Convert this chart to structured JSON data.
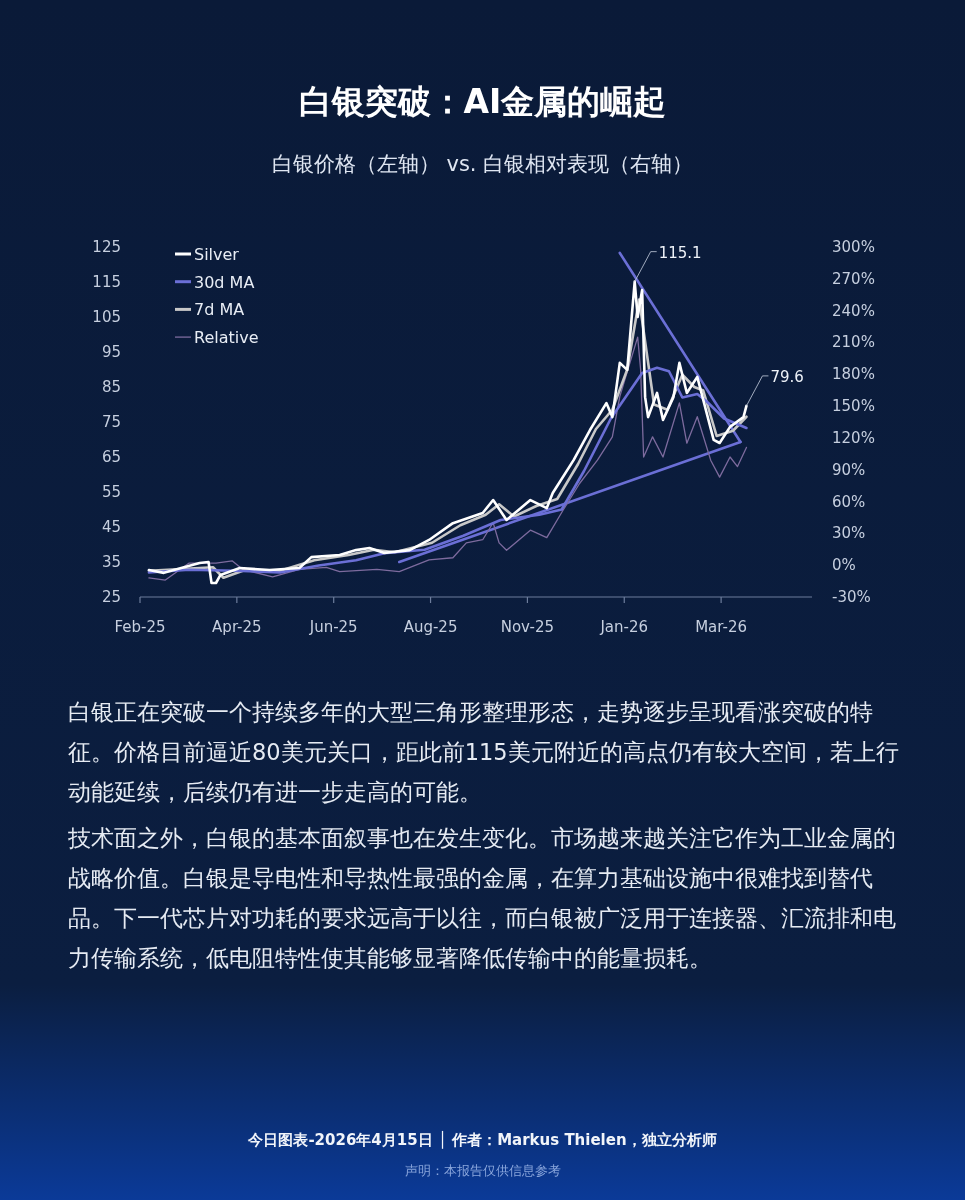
{
  "chart_data": {
    "type": "line",
    "title": "白银突破：AI金属的崛起",
    "subtitle": "白银价格（左轴） vs. 白银相对表现（右轴）",
    "xlim": [
      "2025-02-15",
      "2026-05-12"
    ],
    "xticks": [
      {
        "value": "2025-02-15",
        "label": "Feb-25"
      },
      {
        "value": "2025-04-21",
        "label": "Apr-25"
      },
      {
        "value": "2025-06-25",
        "label": "Jun-25"
      },
      {
        "value": "2025-08-29",
        "label": "Aug-25"
      },
      {
        "value": "2025-11-02",
        "label": "Nov-25"
      },
      {
        "value": "2026-01-06",
        "label": "Jan-26"
      },
      {
        "value": "2026-03-12",
        "label": "Mar-26"
      }
    ],
    "ylim": [
      25,
      125
    ],
    "yticks": [
      25,
      35,
      45,
      55,
      65,
      75,
      85,
      95,
      105,
      115,
      125
    ],
    "y2lim": [
      -30,
      300
    ],
    "y2ticks": [
      {
        "value": -30,
        "label": "-30%"
      },
      {
        "value": 0,
        "label": "0%"
      },
      {
        "value": 30,
        "label": "30%"
      },
      {
        "value": 60,
        "label": "60%"
      },
      {
        "value": 90,
        "label": "90%"
      },
      {
        "value": 120,
        "label": "120%"
      },
      {
        "value": 150,
        "label": "150%"
      },
      {
        "value": 180,
        "label": "180%"
      },
      {
        "value": 210,
        "label": "210%"
      },
      {
        "value": 240,
        "label": "240%"
      },
      {
        "value": 270,
        "label": "270%"
      },
      {
        "value": 300,
        "label": "300%"
      }
    ],
    "grid": false,
    "legend": "top left",
    "line_style": "solid",
    "series": [
      {
        "name": "Silver",
        "color": "#ffffff",
        "x": [
          "2025-02-21",
          "2025-03-03",
          "2025-03-27",
          "2025-04-02",
          "2025-04-04",
          "2025-04-07",
          "2025-04-10",
          "2025-04-23",
          "2025-05-13",
          "2025-06-02",
          "2025-06-10",
          "2025-06-29",
          "2025-07-10",
          "2025-07-19",
          "2025-07-29",
          "2025-08-15",
          "2025-08-28",
          "2025-09-13",
          "2025-10-03",
          "2025-10-10",
          "2025-10-19",
          "2025-11-04",
          "2025-11-15",
          "2025-11-19",
          "2025-12-03",
          "2025-12-14",
          "2025-12-25",
          "2025-12-29",
          "2026-01-03",
          "2026-01-08",
          "2026-01-13",
          "2026-01-15",
          "2026-01-18",
          "2026-01-20",
          "2026-01-22",
          "2026-01-28",
          "2026-02-01",
          "2026-02-08",
          "2026-02-12",
          "2026-02-17",
          "2026-02-24",
          "2026-03-07",
          "2026-03-11",
          "2026-03-18",
          "2026-03-27",
          "2026-03-29"
        ],
        "values": [
          32.7,
          31.9,
          34.7,
          35.0,
          29.0,
          29.0,
          31.3,
          33.3,
          32.7,
          33.3,
          36.4,
          37.0,
          38.4,
          39.0,
          37.6,
          38.4,
          41.3,
          46.1,
          49.0,
          52.7,
          47.0,
          52.7,
          50.4,
          54.7,
          64.1,
          72.7,
          80.4,
          76.4,
          91.9,
          89.9,
          115.1,
          105.0,
          112.7,
          82.1,
          76.4,
          83.3,
          75.6,
          82.1,
          91.9,
          83.3,
          87.9,
          69.9,
          69.0,
          73.6,
          76.4,
          79.6
        ]
      },
      {
        "name": "30d MA",
        "color": "#6b6fd6",
        "x": [
          "2025-02-21",
          "2025-03-20",
          "2025-04-20",
          "2025-05-20",
          "2025-06-15",
          "2025-07-10",
          "2025-07-29",
          "2025-08-25",
          "2025-09-20",
          "2025-10-15",
          "2025-11-10",
          "2025-11-25",
          "2025-12-10",
          "2025-12-28",
          "2026-01-18",
          "2026-01-28",
          "2026-02-05",
          "2026-02-14",
          "2026-02-24",
          "2026-03-02",
          "2026-03-14",
          "2026-03-29"
        ],
        "values": [
          32.0,
          32.8,
          32.5,
          32.0,
          34.0,
          35.5,
          37.5,
          38.5,
          42.5,
          47.0,
          48.5,
          50.0,
          61.0,
          76.0,
          89.0,
          90.5,
          89.5,
          82.0,
          83.0,
          81.0,
          76.0,
          73.3
        ]
      },
      {
        "name": "7d MA",
        "color": "#c8c8c8",
        "x": [
          "2025-02-21",
          "2025-03-15",
          "2025-04-05",
          "2025-04-12",
          "2025-04-25",
          "2025-05-20",
          "2025-06-12",
          "2025-07-05",
          "2025-07-22",
          "2025-08-05",
          "2025-08-30",
          "2025-09-18",
          "2025-10-05",
          "2025-10-14",
          "2025-10-24",
          "2025-11-08",
          "2025-11-22",
          "2025-12-06",
          "2025-12-18",
          "2025-12-29",
          "2026-01-08",
          "2026-01-16",
          "2026-01-21",
          "2026-01-26",
          "2026-02-04",
          "2026-02-14",
          "2026-02-22",
          "2026-02-28",
          "2026-03-09",
          "2026-03-20",
          "2026-03-29"
        ],
        "values": [
          32.5,
          33.0,
          33.5,
          30.5,
          32.5,
          32.5,
          35.5,
          37.0,
          38.5,
          37.8,
          40.5,
          45.5,
          48.5,
          51.5,
          48.0,
          51.0,
          53.0,
          63.0,
          73.0,
          78.5,
          90.0,
          110.0,
          95.0,
          80.0,
          78.5,
          88.5,
          85.0,
          84.0,
          71.0,
          72.5,
          76.5
        ]
      },
      {
        "name": "Relative",
        "color": "#7d6b9e",
        "axis": "y2",
        "x": [
          "2025-02-21",
          "2025-03-04",
          "2025-03-20",
          "2025-04-07",
          "2025-04-18",
          "2025-04-25",
          "2025-05-15",
          "2025-06-02",
          "2025-06-20",
          "2025-06-29",
          "2025-07-24",
          "2025-08-08",
          "2025-08-28",
          "2025-09-13",
          "2025-09-22",
          "2025-10-03",
          "2025-10-10",
          "2025-10-14",
          "2025-10-19",
          "2025-11-04",
          "2025-11-15",
          "2025-11-26",
          "2025-12-07",
          "2025-12-19",
          "2025-12-29",
          "2026-01-03",
          "2026-01-15",
          "2026-01-17",
          "2026-01-19",
          "2026-01-25",
          "2026-02-01",
          "2026-02-12",
          "2026-02-17",
          "2026-02-24",
          "2026-03-05",
          "2026-03-11",
          "2026-03-18",
          "2026-03-23",
          "2026-03-29"
        ],
        "values": [
          -12,
          -14,
          2,
          2,
          4,
          -4,
          -11,
          -4,
          -2,
          -6,
          -4,
          -6,
          5,
          7,
          21,
          24,
          40,
          21,
          14,
          33,
          26,
          52,
          77,
          99,
          121,
          159,
          215,
          184,
          102,
          121,
          102,
          153,
          115,
          140,
          99,
          83,
          102,
          93,
          111
        ]
      },
      {
        "color": "#6b6fd6",
        "x": [
          "2026-01-03",
          "2026-03-25"
        ],
        "values": [
          123.3,
          69.3
        ]
      },
      {
        "color": "#6b6fd6",
        "x": [
          "2025-08-08",
          "2026-03-25"
        ],
        "values": [
          35.0,
          69.3
        ]
      }
    ],
    "annotations": [
      {
        "text": "115.1",
        "x": "2026-01-13",
        "y": 115.1
      },
      {
        "text": "79.6",
        "x": "2026-03-29",
        "y": 79.6
      },
      "白银正在突破一个持续多年的大型三角形整理形态，走势逐步呈现看涨突破的特征。价格目前逼近80美元关口，距此前115美元附近的高点仍有较大空间，若上行动能延续，后续仍有进一步走高的可能。",
      "技术面之外，白银的基本面叙事也在发生变化。市场越来越关注它作为工业金属的战略价值。白银是导电性和导热性最强的金属，在算力基础设施中很难找到替代品。下一代芯片对功耗的要求远高于以往，而白银被广泛用于连接器、汇流排和电力传输系统，低电阻特性使其能够显著降低传输中的能量损耗。",
      "今日图表-2026年4月15日 │ 作者：Markus Thielen，独立分析师",
      "声明：本报告仅供信息参考"
    ]
  }
}
